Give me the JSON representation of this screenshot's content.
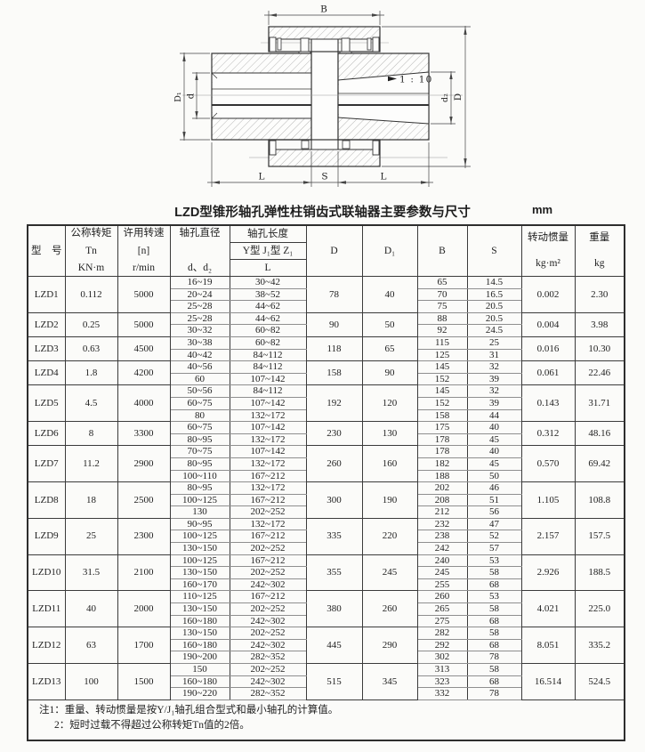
{
  "title": "LZD型锥形轴孔弹性柱销齿式联轴器主要参数与尺寸",
  "unit_label": "mm",
  "drawing": {
    "labels": {
      "B": "B",
      "D": "D",
      "D1": "D₁",
      "d": "d",
      "d2": "d₂",
      "L_left": "L",
      "S": "S",
      "L_right": "L",
      "taper": "1 : 10"
    }
  },
  "table": {
    "header": {
      "model": "型　号",
      "torque_title": "公称转矩",
      "torque_symbol": "Tn",
      "torque_unit": "KN·m",
      "speed_title": "许用转速",
      "speed_symbol": "[n]",
      "speed_unit": "r/min",
      "bore_dia_title": "轴孔直径",
      "bore_dia_symbol": "d、d₂",
      "bore_len_title": "轴孔长度",
      "bore_len_types": "Y型 J₁型 Z₁",
      "bore_len_symbol": "L",
      "D": "D",
      "D1": "D₁",
      "B": "B",
      "S": "S",
      "inertia_title": "转动惯量",
      "inertia_unit": "kg·m²",
      "weight_title": "重量",
      "weight_unit": "kg"
    },
    "rows": [
      {
        "model": "LZD1",
        "torque": "0.112",
        "speed": "5000",
        "D": "78",
        "D1": "40",
        "inertia": "0.002",
        "weight": "2.30",
        "bores": [
          [
            "16~19",
            "30~42"
          ],
          [
            "20~24",
            "38~52"
          ],
          [
            "25~28",
            "44~62"
          ]
        ],
        "bs": [
          [
            "65",
            "14.5"
          ],
          [
            "70",
            "16.5"
          ],
          [
            "75",
            "20.5"
          ]
        ]
      },
      {
        "model": "LZD2",
        "torque": "0.25",
        "speed": "5000",
        "D": "90",
        "D1": "50",
        "inertia": "0.004",
        "weight": "3.98",
        "bores": [
          [
            "25~28",
            "44~62"
          ],
          [
            "30~32",
            "60~82"
          ]
        ],
        "bs": [
          [
            "88",
            "20.5"
          ],
          [
            "92",
            "24.5"
          ]
        ]
      },
      {
        "model": "LZD3",
        "torque": "0.63",
        "speed": "4500",
        "D": "118",
        "D1": "65",
        "inertia": "0.016",
        "weight": "10.30",
        "bores": [
          [
            "30~38",
            "60~82"
          ],
          [
            "40~42",
            "84~112"
          ]
        ],
        "bs": [
          [
            "115",
            "25"
          ],
          [
            "125",
            "31"
          ]
        ]
      },
      {
        "model": "LZD4",
        "torque": "1.8",
        "speed": "4200",
        "D": "158",
        "D1": "90",
        "inertia": "0.061",
        "weight": "22.46",
        "bores": [
          [
            "40~56",
            "84~112"
          ],
          [
            "60",
            "107~142"
          ]
        ],
        "bs": [
          [
            "145",
            "32"
          ],
          [
            "152",
            "39"
          ]
        ]
      },
      {
        "model": "LZD5",
        "torque": "4.5",
        "speed": "4000",
        "D": "192",
        "D1": "120",
        "inertia": "0.143",
        "weight": "31.71",
        "bores": [
          [
            "50~56",
            "84~112"
          ],
          [
            "60~75",
            "107~142"
          ],
          [
            "80",
            "132~172"
          ]
        ],
        "bs": [
          [
            "145",
            "32"
          ],
          [
            "152",
            "39"
          ],
          [
            "158",
            "44"
          ]
        ]
      },
      {
        "model": "LZD6",
        "torque": "8",
        "speed": "3300",
        "D": "230",
        "D1": "130",
        "inertia": "0.312",
        "weight": "48.16",
        "bores": [
          [
            "60~75",
            "107~142"
          ],
          [
            "80~95",
            "132~172"
          ]
        ],
        "bs": [
          [
            "175",
            "40"
          ],
          [
            "178",
            "45"
          ]
        ]
      },
      {
        "model": "LZD7",
        "torque": "11.2",
        "speed": "2900",
        "D": "260",
        "D1": "160",
        "inertia": "0.570",
        "weight": "69.42",
        "bores": [
          [
            "70~75",
            "107~142"
          ],
          [
            "80~95",
            "132~172"
          ],
          [
            "100~110",
            "167~212"
          ]
        ],
        "bs": [
          [
            "178",
            "40"
          ],
          [
            "182",
            "45"
          ],
          [
            "188",
            "50"
          ]
        ]
      },
      {
        "model": "LZD8",
        "torque": "18",
        "speed": "2500",
        "D": "300",
        "D1": "190",
        "inertia": "1.105",
        "weight": "108.8",
        "bores": [
          [
            "80~95",
            "132~172"
          ],
          [
            "100~125",
            "167~212"
          ],
          [
            "130",
            "202~252"
          ]
        ],
        "bs": [
          [
            "202",
            "46"
          ],
          [
            "208",
            "51"
          ],
          [
            "212",
            "56"
          ]
        ]
      },
      {
        "model": "LZD9",
        "torque": "25",
        "speed": "2300",
        "D": "335",
        "D1": "220",
        "inertia": "2.157",
        "weight": "157.5",
        "bores": [
          [
            "90~95",
            "132~172"
          ],
          [
            "100~125",
            "167~212"
          ],
          [
            "130~150",
            "202~252"
          ]
        ],
        "bs": [
          [
            "232",
            "47"
          ],
          [
            "238",
            "52"
          ],
          [
            "242",
            "57"
          ]
        ]
      },
      {
        "model": "LZD10",
        "torque": "31.5",
        "speed": "2100",
        "D": "355",
        "D1": "245",
        "inertia": "2.926",
        "weight": "188.5",
        "bores": [
          [
            "100~125",
            "167~212"
          ],
          [
            "130~150",
            "202~252"
          ],
          [
            "160~170",
            "242~302"
          ]
        ],
        "bs": [
          [
            "240",
            "53"
          ],
          [
            "245",
            "58"
          ],
          [
            "255",
            "68"
          ]
        ]
      },
      {
        "model": "LZD11",
        "torque": "40",
        "speed": "2000",
        "D": "380",
        "D1": "260",
        "inertia": "4.021",
        "weight": "225.0",
        "bores": [
          [
            "110~125",
            "167~212"
          ],
          [
            "130~150",
            "202~252"
          ],
          [
            "160~180",
            "242~302"
          ]
        ],
        "bs": [
          [
            "260",
            "53"
          ],
          [
            "265",
            "58"
          ],
          [
            "275",
            "68"
          ]
        ]
      },
      {
        "model": "LZD12",
        "torque": "63",
        "speed": "1700",
        "D": "445",
        "D1": "290",
        "inertia": "8.051",
        "weight": "335.2",
        "bores": [
          [
            "130~150",
            "202~252"
          ],
          [
            "160~180",
            "242~302"
          ],
          [
            "190~200",
            "282~352"
          ]
        ],
        "bs": [
          [
            "282",
            "58"
          ],
          [
            "292",
            "68"
          ],
          [
            "302",
            "78"
          ]
        ]
      },
      {
        "model": "LZD13",
        "torque": "100",
        "speed": "1500",
        "D": "515",
        "D1": "345",
        "inertia": "16.514",
        "weight": "524.5",
        "bores": [
          [
            "150",
            "202~252"
          ],
          [
            "160~180",
            "242~302"
          ],
          [
            "190~220",
            "282~352"
          ]
        ],
        "bs": [
          [
            "313",
            "58"
          ],
          [
            "323",
            "68"
          ],
          [
            "332",
            "78"
          ]
        ]
      }
    ],
    "notes": [
      "注1：重量、转动惯量是按Y/J₁轴孔组合型式和最小轴孔的计算值。",
      "2：短时过载不得超过公称转矩Tn值的2倍。"
    ]
  }
}
